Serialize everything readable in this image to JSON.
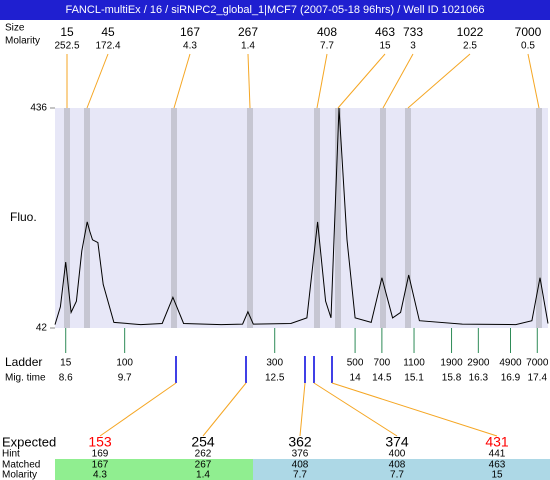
{
  "title": "FANCL-multiEx / 16 / siRNPC2_global_1|MCF7 (2007-05-18 96hrs) / Well ID 1021066",
  "peaks": {
    "row_labels": [
      "Size",
      "Molarity"
    ],
    "sizes": [
      15,
      45,
      167,
      267,
      408,
      463,
      733,
      1022,
      7000
    ],
    "molarity": [
      252.5,
      172.4,
      4.3,
      1.4,
      7.7,
      15,
      3,
      2.5,
      0.5
    ]
  },
  "chart_data": {
    "type": "line",
    "ylabel": "Fluo.",
    "color": "#000000",
    "xlim": [
      8.4,
      17.6
    ],
    "ylim": [
      42,
      436
    ],
    "yticks": [
      42,
      436
    ],
    "x": [
      8.4,
      8.5,
      8.6,
      8.7,
      8.8,
      8.9,
      9.0,
      9.05,
      9.1,
      9.2,
      9.3,
      9.5,
      10.0,
      10.4,
      10.6,
      10.8,
      11.5,
      11.9,
      12.0,
      12.1,
      12.8,
      13.1,
      13.3,
      13.45,
      13.55,
      13.7,
      13.85,
      14.0,
      14.3,
      14.5,
      14.7,
      14.85,
      15.0,
      15.2,
      16.0,
      17.0,
      17.3,
      17.45,
      17.6
    ],
    "values": [
      48,
      80,
      160,
      70,
      90,
      180,
      232,
      215,
      200,
      195,
      120,
      52,
      48,
      50,
      97,
      50,
      48,
      49,
      71,
      49,
      50,
      60,
      232,
      90,
      60,
      436,
      200,
      60,
      52,
      132,
      60,
      70,
      137,
      55,
      49,
      48,
      55,
      132,
      50
    ]
  },
  "ladder": {
    "row_labels": [
      "Ladder",
      "Mig. time"
    ],
    "sizes": [
      15,
      100,
      300,
      500,
      700,
      1100,
      1900,
      2900,
      4900,
      7000
    ],
    "mig_times": [
      8.6,
      9.7,
      12.5,
      14,
      14.5,
      15.1,
      15.8,
      16.3,
      16.9,
      17.4
    ]
  },
  "expected": {
    "row_labels": [
      "Expected",
      "Hint",
      "Matched",
      "Molarity"
    ],
    "expected": [
      {
        "value": 153,
        "color": "#ff0000"
      },
      {
        "value": 254,
        "color": "#000000"
      },
      {
        "value": 362,
        "color": "#000000"
      },
      {
        "value": 374,
        "color": "#000000"
      },
      {
        "value": 431,
        "color": "#ff0000"
      }
    ],
    "hint": [
      169,
      262,
      376,
      400,
      441
    ],
    "matched": [
      167,
      267,
      408,
      408,
      463
    ],
    "molarity": [
      4.3,
      1.4,
      7.7,
      7.7,
      15
    ]
  }
}
